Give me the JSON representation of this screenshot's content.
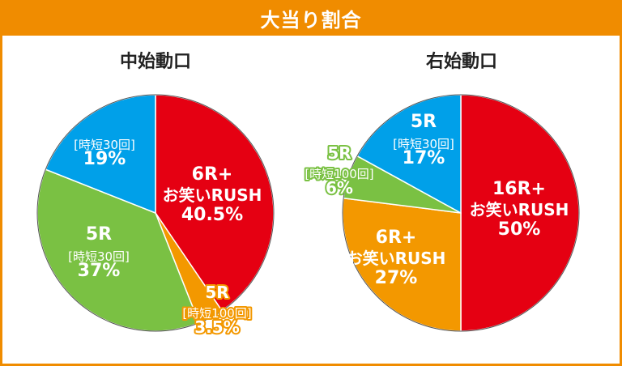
{
  "header": {
    "title": "大当り割合"
  },
  "colors": {
    "accent": "#f08c00",
    "red": "#e50012",
    "orange": "#f39800",
    "green": "#7ac143",
    "blue": "#00a0e9"
  },
  "chart_data": [
    {
      "type": "pie",
      "title": "中始動口",
      "slices": [
        {
          "lines": [
            "6R+",
            "お笑いRUSH"
          ],
          "value": 40.5,
          "value_label": "40.5%",
          "color": "red"
        },
        {
          "lines": [
            "5R",
            "[時短100回]"
          ],
          "value": 3.5,
          "value_label": "3.5%",
          "color": "orange"
        },
        {
          "lines": [
            "5R",
            "[時短30回]"
          ],
          "value": 37,
          "value_label": "37%",
          "color": "green"
        },
        {
          "lines": [
            "[時短30回]"
          ],
          "value": 19,
          "value_label": "19%",
          "color": "blue"
        }
      ]
    },
    {
      "type": "pie",
      "title": "右始動口",
      "slices": [
        {
          "lines": [
            "16R+",
            "お笑いRUSH"
          ],
          "value": 50,
          "value_label": "50%",
          "color": "red"
        },
        {
          "lines": [
            "6R+",
            "お笑いRUSH"
          ],
          "value": 27,
          "value_label": "27%",
          "color": "orange"
        },
        {
          "lines": [
            "5R",
            "[時短100回]"
          ],
          "value": 6,
          "value_label": "6%",
          "color": "green"
        },
        {
          "lines": [
            "5R",
            "[時短30回]"
          ],
          "value": 17,
          "value_label": "17%",
          "color": "blue"
        }
      ]
    }
  ]
}
